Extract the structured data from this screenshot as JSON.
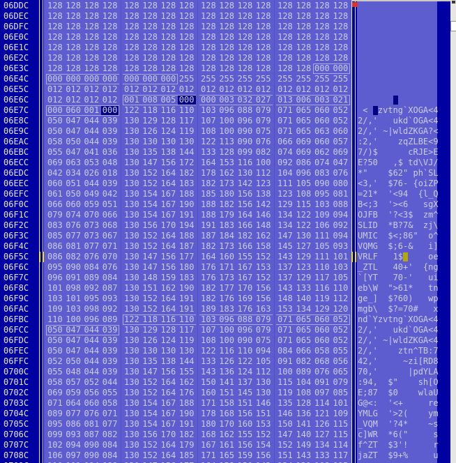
{
  "colors": {
    "background_navy": "#0101a1",
    "panel_blue": "#5d5dd0",
    "text_light": "#cbcdec",
    "address_text": "#e6e6f6",
    "separator_white": "#e8e8f0",
    "group_line": "#5151c3",
    "box_outline": "#a9abe2",
    "highlight_navy": "#000080",
    "cursor_yellow": "#b4a60a",
    "marker_yellow": "#f2e60a",
    "red_dot": "#e03226",
    "gray_strip": "#e8e6e1"
  },
  "hex_view": {
    "bytes_per_row": 16,
    "rows": [
      {
        "addr": "06DDC",
        "values": [
          "128",
          "128",
          "128",
          "128",
          "128",
          "128",
          "128",
          "128",
          "128",
          "128",
          "128",
          "128",
          "128",
          "128",
          "128",
          "128"
        ],
        "ascii": ""
      },
      {
        "addr": "06DEC",
        "values": [
          "128",
          "128",
          "128",
          "128",
          "128",
          "128",
          "128",
          "128",
          "128",
          "128",
          "128",
          "128",
          "128",
          "128",
          "128",
          "128"
        ],
        "ascii": ""
      },
      {
        "addr": "06DFC",
        "values": [
          "128",
          "128",
          "128",
          "128",
          "128",
          "128",
          "128",
          "128",
          "128",
          "128",
          "128",
          "128",
          "128",
          "128",
          "128",
          "128"
        ],
        "ascii": ""
      },
      {
        "addr": "06E0C",
        "values": [
          "128",
          "128",
          "128",
          "128",
          "128",
          "128",
          "128",
          "128",
          "128",
          "128",
          "128",
          "128",
          "128",
          "128",
          "128",
          "128"
        ],
        "ascii": ""
      },
      {
        "addr": "06E1C",
        "values": [
          "128",
          "128",
          "128",
          "128",
          "128",
          "128",
          "128",
          "128",
          "128",
          "128",
          "128",
          "128",
          "128",
          "128",
          "128",
          "128"
        ],
        "ascii": ""
      },
      {
        "addr": "06E2C",
        "values": [
          "128",
          "128",
          "128",
          "128",
          "128",
          "128",
          "128",
          "128",
          "128",
          "128",
          "128",
          "128",
          "128",
          "128",
          "128",
          "128"
        ],
        "ascii": ""
      },
      {
        "addr": "06E3C",
        "values": [
          "128",
          "128",
          "128",
          "128",
          "128",
          "128",
          "128",
          "128",
          "128",
          "128",
          "128",
          "128",
          "128",
          "128",
          "000",
          "000"
        ],
        "ascii": "",
        "boxes": [
          [
            15,
            16
          ]
        ]
      },
      {
        "addr": "06E4C",
        "values": [
          "000",
          "000",
          "000",
          "000",
          "000",
          "000",
          "000",
          "255",
          "255",
          "255",
          "255",
          "255",
          "255",
          "255",
          "255",
          "255"
        ],
        "ascii": "",
        "boxes": [
          [
            1,
            7
          ]
        ]
      },
      {
        "addr": "06E5C",
        "values": [
          "012",
          "012",
          "012",
          "012",
          "012",
          "012",
          "012",
          "012",
          "012",
          "012",
          "012",
          "012",
          "012",
          "012",
          "012",
          "012"
        ],
        "ascii": ""
      },
      {
        "addr": "06E6C",
        "values": [
          "012",
          "012",
          "012",
          "012",
          "001",
          "008",
          "005",
          "000",
          "000",
          "003",
          "032",
          "027",
          "013",
          "006",
          "003",
          "021"
        ],
        "ascii": "",
        "boxes": [
          [
            5,
            16
          ]
        ],
        "hl": [
          8
        ],
        "cursor": {
          "pos": 8,
          "style": "dark"
        }
      },
      {
        "addr": "06E7C",
        "values": [
          "000",
          "060",
          "001",
          "000",
          "122",
          "118",
          "116",
          "110",
          "103",
          "096",
          "088",
          "079",
          "071",
          "065",
          "060",
          "052"
        ],
        "ascii": " <  zvtng`XOGA<4",
        "boxes": [
          [
            1,
            4
          ]
        ],
        "hl": [
          4
        ],
        "cursor": {
          "pos": 4,
          "style": "dark"
        }
      },
      {
        "addr": "06E8C",
        "values": [
          "050",
          "047",
          "044",
          "039",
          "130",
          "129",
          "128",
          "117",
          "107",
          "100",
          "096",
          "079",
          "071",
          "065",
          "060",
          "052"
        ],
        "ascii": "2/,'   ukd`OGA<4"
      },
      {
        "addr": "06E9C",
        "values": [
          "050",
          "047",
          "044",
          "039",
          "130",
          "126",
          "124",
          "119",
          "108",
          "100",
          "090",
          "075",
          "071",
          "065",
          "063",
          "060"
        ],
        "ascii": "2/,' ~|wldZKGA?<"
      },
      {
        "addr": "06EAC",
        "values": [
          "058",
          "050",
          "044",
          "039",
          "130",
          "130",
          "130",
          "130",
          "122",
          "113",
          "090",
          "076",
          "066",
          "069",
          "060",
          "057"
        ],
        "ascii": ":2,'    zqZLBE<9"
      },
      {
        "addr": "06EBC",
        "values": [
          "055",
          "047",
          "041",
          "036",
          "130",
          "135",
          "138",
          "144",
          "133",
          "128",
          "099",
          "082",
          "074",
          "069",
          "062",
          "069"
        ],
        "ascii": "7/)$      cRJE>E"
      },
      {
        "addr": "06ECC",
        "values": [
          "069",
          "063",
          "053",
          "048",
          "130",
          "147",
          "156",
          "172",
          "164",
          "153",
          "116",
          "100",
          "092",
          "086",
          "074",
          "047"
        ],
        "ascii": "E?50   ,$ td\\VJ/"
      },
      {
        "addr": "06EDC",
        "values": [
          "042",
          "034",
          "026",
          "018",
          "130",
          "152",
          "164",
          "182",
          "178",
          "162",
          "130",
          "112",
          "104",
          "096",
          "083",
          "076"
        ],
        "ascii": "*\"    $62\" ph`SL"
      },
      {
        "addr": "06EEC",
        "values": [
          "060",
          "051",
          "044",
          "039",
          "130",
          "152",
          "164",
          "183",
          "182",
          "173",
          "142",
          "123",
          "111",
          "105",
          "090",
          "080"
        ],
        "ascii": "<3,'  $76- {oiZP"
      },
      {
        "addr": "06EFC",
        "values": [
          "061",
          "050",
          "049",
          "042",
          "130",
          "154",
          "167",
          "188",
          "185",
          "180",
          "156",
          "138",
          "123",
          "108",
          "095",
          "081"
        ],
        "ascii": "=21*  '<94  {l_Q"
      },
      {
        "addr": "06F0C",
        "values": [
          "066",
          "060",
          "059",
          "051",
          "130",
          "154",
          "167",
          "190",
          "188",
          "182",
          "156",
          "142",
          "129",
          "115",
          "103",
          "088"
        ],
        "ascii": "B<;3  '><6   sgX"
      },
      {
        "addr": "06F1C",
        "values": [
          "079",
          "074",
          "070",
          "066",
          "130",
          "154",
          "167",
          "191",
          "188",
          "179",
          "164",
          "146",
          "134",
          "122",
          "109",
          "094"
        ],
        "ascii": "OJFB  '?<3$  zm^"
      },
      {
        "addr": "06F2C",
        "values": [
          "083",
          "076",
          "073",
          "068",
          "130",
          "156",
          "170",
          "194",
          "191",
          "183",
          "166",
          "148",
          "134",
          "122",
          "106",
          "092"
        ],
        "ascii": "SLID  *B?7&  zj\\"
      },
      {
        "addr": "06F3C",
        "values": [
          "085",
          "077",
          "073",
          "067",
          "130",
          "152",
          "164",
          "188",
          "187",
          "184",
          "182",
          "162",
          "147",
          "130",
          "111",
          "094"
        ],
        "ascii": "UMIC  $<;86\"  o^"
      },
      {
        "addr": "06F4C",
        "values": [
          "086",
          "081",
          "077",
          "071",
          "130",
          "152",
          "164",
          "187",
          "182",
          "173",
          "166",
          "158",
          "145",
          "127",
          "105",
          "093"
        ],
        "ascii": "VQMG  $;6-&   i]"
      },
      {
        "addr": "06F5C",
        "values": [
          "086",
          "082",
          "076",
          "070",
          "130",
          "147",
          "156",
          "177",
          "164",
          "160",
          "155",
          "152",
          "143",
          "129",
          "111",
          "101"
        ],
        "ascii": "VRLF   1$     oe",
        "cursor": {
          "pos": 10,
          "style": "yellow"
        },
        "marker": true
      },
      {
        "addr": "06F6C",
        "values": [
          "095",
          "090",
          "084",
          "076",
          "130",
          "147",
          "156",
          "180",
          "176",
          "171",
          "167",
          "153",
          "137",
          "123",
          "110",
          "103"
        ],
        "ascii": "_ZTL   40+'  {ng"
      },
      {
        "addr": "06F7C",
        "values": [
          "096",
          "091",
          "089",
          "084",
          "130",
          "148",
          "159",
          "183",
          "176",
          "173",
          "167",
          "152",
          "137",
          "129",
          "117",
          "105"
        ],
        "ascii": "`[YT   70-'   ui"
      },
      {
        "addr": "06F8C",
        "values": [
          "101",
          "098",
          "092",
          "087",
          "130",
          "151",
          "162",
          "190",
          "182",
          "177",
          "170",
          "156",
          "143",
          "133",
          "116",
          "110"
        ],
        "ascii": "eb\\W  \">61*   tn"
      },
      {
        "addr": "06F9C",
        "values": [
          "103",
          "101",
          "095",
          "093",
          "130",
          "152",
          "164",
          "191",
          "182",
          "176",
          "169",
          "156",
          "148",
          "140",
          "119",
          "112"
        ],
        "ascii": "ge_]  $?60)   wp"
      },
      {
        "addr": "06FAC",
        "values": [
          "109",
          "103",
          "098",
          "092",
          "130",
          "152",
          "164",
          "191",
          "189",
          "183",
          "176",
          "163",
          "153",
          "134",
          "129",
          "120"
        ],
        "ascii": "mgb\\  $?=70#   x"
      },
      {
        "addr": "06FBC",
        "values": [
          "110",
          "100",
          "096",
          "089",
          "122",
          "118",
          "116",
          "110",
          "103",
          "096",
          "088",
          "079",
          "071",
          "065",
          "060",
          "052"
        ],
        "ascii": "nd`Yzvtng`XOGA<4",
        "boxes": [
          [
            5,
            16
          ]
        ]
      },
      {
        "addr": "06FCC",
        "values": [
          "050",
          "047",
          "044",
          "039",
          "130",
          "129",
          "128",
          "117",
          "107",
          "100",
          "096",
          "079",
          "071",
          "065",
          "060",
          "052"
        ],
        "ascii": "2/,'   ukd`OGA<4",
        "boxes": [
          [
            1,
            4
          ]
        ]
      },
      {
        "addr": "06FDC",
        "values": [
          "050",
          "047",
          "044",
          "039",
          "130",
          "126",
          "124",
          "119",
          "108",
          "100",
          "090",
          "075",
          "071",
          "065",
          "060",
          "052"
        ],
        "ascii": "2/,' ~|wldZKGA<4"
      },
      {
        "addr": "06FEC",
        "values": [
          "050",
          "047",
          "044",
          "039",
          "130",
          "130",
          "130",
          "130",
          "122",
          "116",
          "110",
          "094",
          "084",
          "066",
          "058",
          "055"
        ],
        "ascii": "2/,'    ztn^TB:7"
      },
      {
        "addr": "06FFC",
        "values": [
          "052",
          "050",
          "044",
          "039",
          "130",
          "135",
          "138",
          "144",
          "133",
          "126",
          "122",
          "105",
          "091",
          "082",
          "068",
          "056"
        ],
        "ascii": "42,'     ~zi[RD8"
      },
      {
        "addr": "0700C",
        "values": [
          "055",
          "048",
          "044",
          "039",
          "130",
          "147",
          "156",
          "155",
          "143",
          "136",
          "124",
          "112",
          "100",
          "089",
          "076",
          "065"
        ],
        "ascii": "70,'      |pdYLA"
      },
      {
        "addr": "0701C",
        "values": [
          "058",
          "057",
          "052",
          "044",
          "130",
          "152",
          "164",
          "162",
          "150",
          "141",
          "137",
          "130",
          "115",
          "104",
          "091",
          "079"
        ],
        "ascii": ":94,  $\"    sh[O"
      },
      {
        "addr": "0702C",
        "values": [
          "069",
          "059",
          "056",
          "055",
          "130",
          "152",
          "164",
          "176",
          "160",
          "151",
          "145",
          "130",
          "119",
          "108",
          "097",
          "085"
        ],
        "ascii": "E;87  $0    wlaU"
      },
      {
        "addr": "0703C",
        "values": [
          "071",
          "064",
          "060",
          "058",
          "130",
          "154",
          "167",
          "188",
          "171",
          "158",
          "151",
          "146",
          "135",
          "128",
          "114",
          "101"
        ],
        "ascii": "G@<:  '<+     re"
      },
      {
        "addr": "0704C",
        "values": [
          "089",
          "077",
          "076",
          "071",
          "130",
          "154",
          "167",
          "190",
          "178",
          "168",
          "156",
          "151",
          "146",
          "136",
          "121",
          "109"
        ],
        "ascii": "YMLG  '>2(    ym"
      },
      {
        "addr": "0705C",
        "values": [
          "095",
          "086",
          "081",
          "077",
          "130",
          "154",
          "167",
          "191",
          "180",
          "170",
          "160",
          "153",
          "150",
          "141",
          "126",
          "115"
        ],
        "ascii": "_VQM  '?4*    ~s"
      },
      {
        "addr": "0706C",
        "values": [
          "099",
          "093",
          "087",
          "082",
          "130",
          "156",
          "170",
          "182",
          "168",
          "162",
          "155",
          "152",
          "147",
          "140",
          "127",
          "115"
        ],
        "ascii": "c]WR  *6(\"     s"
      },
      {
        "addr": "0707C",
        "values": [
          "102",
          "094",
          "090",
          "084",
          "130",
          "152",
          "164",
          "179",
          "167",
          "161",
          "156",
          "154",
          "152",
          "149",
          "134",
          "114"
        ],
        "ascii": "f^ZT  $3'!     r"
      },
      {
        "addr": "0708C",
        "values": [
          "106",
          "097",
          "090",
          "084",
          "130",
          "152",
          "164",
          "185",
          "171",
          "165",
          "159",
          "156",
          "151",
          "143",
          "133",
          "117"
        ],
        "ascii": "jaZT  $9+%     u"
      },
      {
        "addr": "0709C",
        "values": [
          "110",
          "101",
          "094",
          "088",
          "130",
          "147",
          "156",
          "177",
          "164",
          "158",
          "150",
          "143",
          "134",
          "121",
          "108",
          "095"
        ],
        "ascii": "",
        "partial": true
      }
    ]
  }
}
